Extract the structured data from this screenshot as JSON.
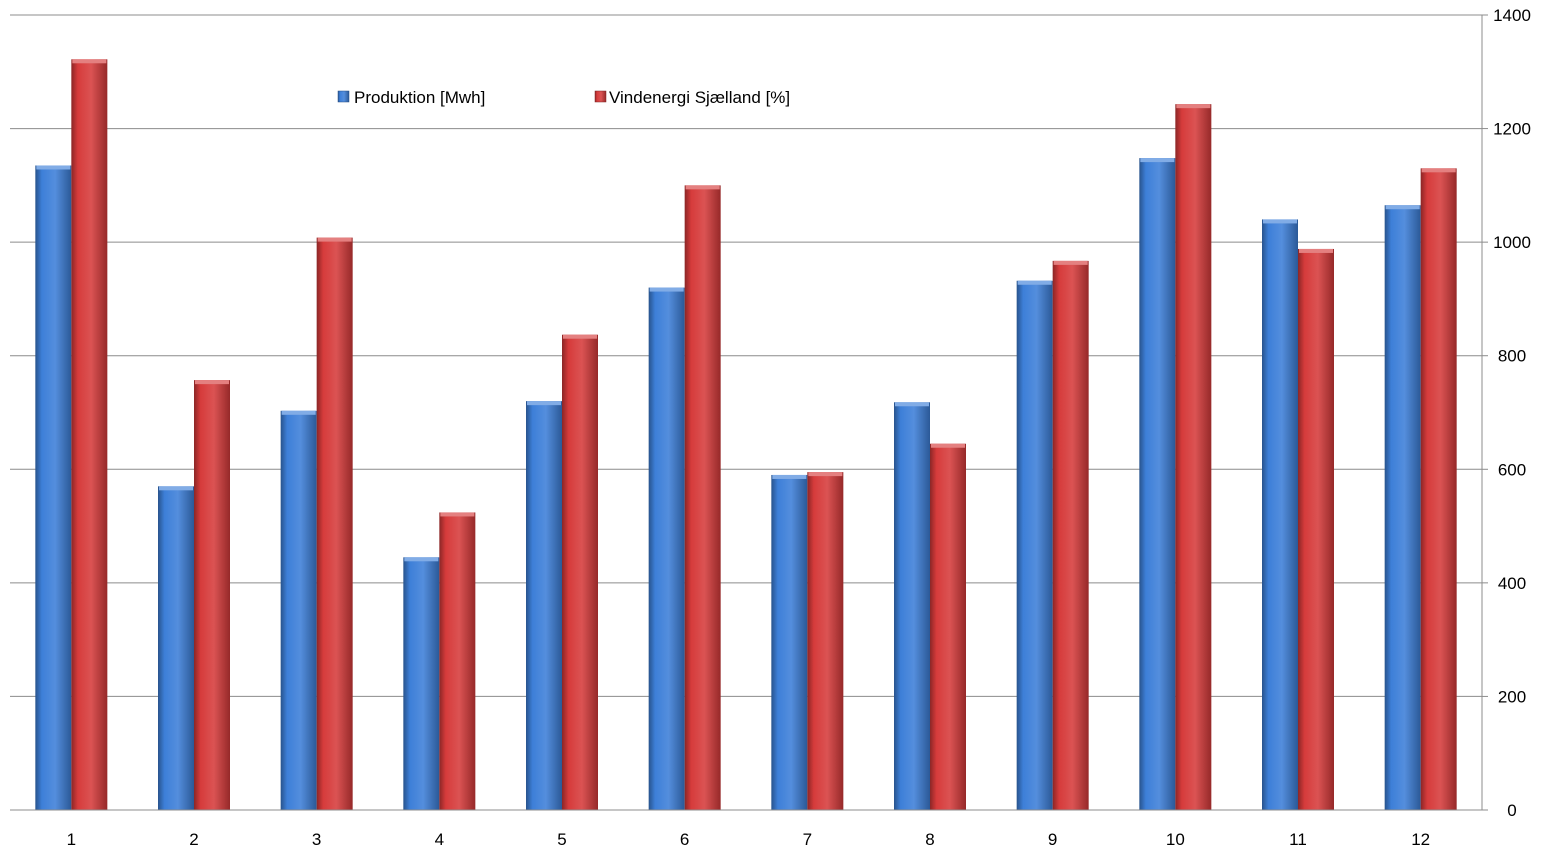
{
  "chart_data": {
    "type": "bar",
    "categories": [
      "1",
      "2",
      "3",
      "4",
      "5",
      "6",
      "7",
      "8",
      "9",
      "10",
      "11",
      "12"
    ],
    "series": [
      {
        "name": "Produktion [Mwh]",
        "color": "#3d7fd8",
        "values": [
          1135,
          570,
          703,
          445,
          720,
          920,
          590,
          718,
          932,
          1148,
          1040,
          1065
        ]
      },
      {
        "name": "Vindenergi Sjælland [%]",
        "color": "#d63b3b",
        "values": [
          1322,
          757,
          1008,
          524,
          837,
          1100,
          595,
          645,
          967,
          1243,
          988,
          1130
        ]
      }
    ],
    "ylim": [
      0,
      1400
    ],
    "yticks": [
      "0",
      "200",
      "400",
      "600",
      "800",
      "1000",
      "1200",
      "1400"
    ],
    "y_axis_side": "right",
    "grid": true,
    "legend_position": "top-center"
  }
}
